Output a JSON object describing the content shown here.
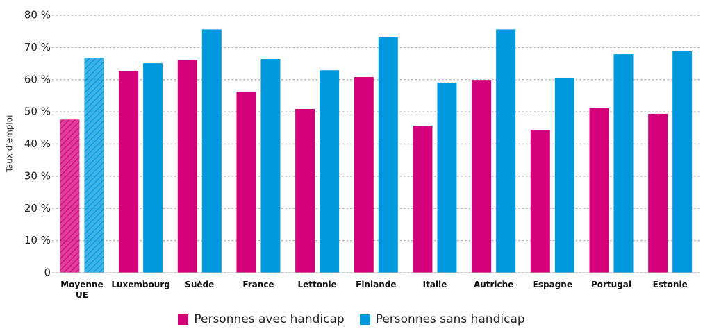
{
  "chart_data": {
    "type": "bar",
    "y_label": "Taux d'emploi",
    "categories": [
      "Moyenne UE",
      "Luxembourg",
      "Suède",
      "France",
      "Lettonie",
      "Finlande",
      "Italie",
      "Autriche",
      "Espagne",
      "Portugal",
      "Estonie"
    ],
    "series": [
      {
        "name": "Personnes avec handicap",
        "color": "#d4007a",
        "values": [
          47.6,
          62.7,
          66.2,
          56.3,
          50.9,
          60.8,
          45.7,
          59.9,
          44.4,
          51.3,
          49.4
        ]
      },
      {
        "name": "Personnes sans handicap",
        "color": "#0099dd",
        "values": [
          66.8,
          65.1,
          75.6,
          66.4,
          62.9,
          73.3,
          59.1,
          75.6,
          60.6,
          67.9,
          68.8
        ]
      }
    ],
    "hatched_categories": [
      "Moyenne UE"
    ],
    "ylim": [
      0,
      80
    ],
    "yticks": [
      0,
      {
        "value": 10,
        "label": "10 %"
      },
      {
        "value": 20,
        "label": "20 %"
      },
      {
        "value": 30,
        "label": "30 %"
      },
      {
        "value": 40,
        "label": "40 %"
      },
      {
        "value": 50,
        "label": "50 %"
      },
      {
        "value": 60,
        "label": "60 %"
      },
      {
        "value": 70,
        "label": "70 %"
      },
      {
        "value": 80,
        "label": "80 %"
      }
    ],
    "grid": true,
    "legend": "bottom"
  }
}
